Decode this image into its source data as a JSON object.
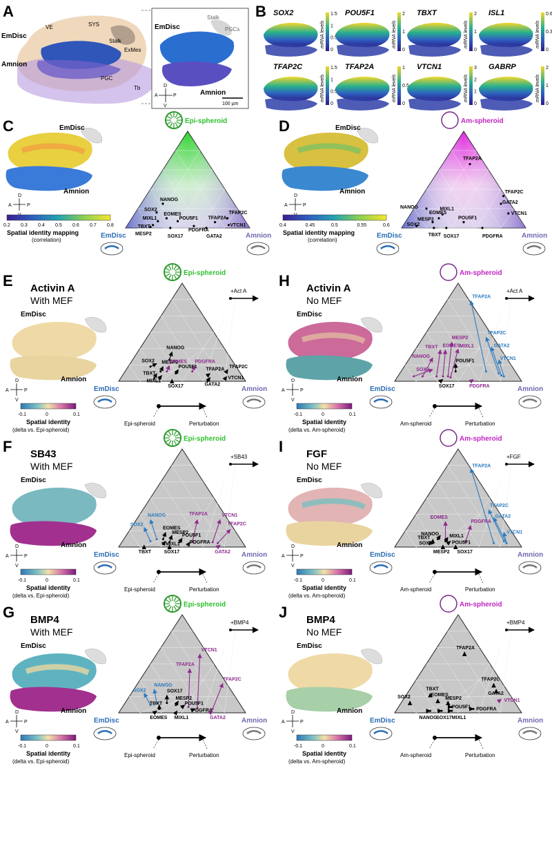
{
  "panelA": {
    "label": "A",
    "anno": [
      "EmDisc",
      "VE",
      "SYS",
      "Stalk",
      "ExMes",
      "Amnion",
      "PGC",
      "Tb"
    ],
    "inset": {
      "emdisc": "EmDisc",
      "stalk": "Stalk",
      "pgcs": "PGCs",
      "amnion": "Amnion",
      "scale": "100 µm"
    }
  },
  "axes_compass": {
    "d": "D",
    "v": "V",
    "a": "A",
    "p": "P"
  },
  "panelB": {
    "label": "B",
    "cbar_label": "mRNA levels",
    "genes": [
      {
        "name": "SOX2",
        "ticks": [
          "1.5",
          "1",
          "0.5",
          "0"
        ]
      },
      {
        "name": "POU5F1",
        "ticks": [
          "2",
          "1",
          "0"
        ]
      },
      {
        "name": "TBXT",
        "ticks": [
          "2",
          "1",
          "0"
        ]
      },
      {
        "name": "ISL1",
        "ticks": [
          "0.6",
          "0.3",
          "0"
        ]
      },
      {
        "name": "TFAP2C",
        "ticks": [
          "1.5",
          "1",
          "0.5",
          "0"
        ]
      },
      {
        "name": "TFAP2A",
        "ticks": [
          "1",
          "0.5",
          "0"
        ]
      },
      {
        "name": "VTCN1",
        "ticks": [
          "3",
          "2",
          "1",
          "0"
        ]
      },
      {
        "name": "GABRP",
        "ticks": [
          "2",
          "1",
          "0"
        ]
      }
    ]
  },
  "panelC": {
    "label": "C",
    "spheroid": "Epi-spheroid",
    "emdisc": "EmDisc",
    "amnion": "Amnion",
    "cbar_ticks": [
      "0.2",
      "0.3",
      "0.4",
      "0.5",
      "0.6",
      "0.7",
      "0.8"
    ],
    "cbar_title": "Spatial identity mapping",
    "cbar_sub": "(correlation)",
    "genes": [
      "NANOG",
      "SOX2",
      "EOMES",
      "POU5F1",
      "MIXL1",
      "TBXT",
      "TFAP2C",
      "TFAP2A",
      "VTCN1",
      "PDGFRA",
      "MESP2",
      "SOX17",
      "GATA2"
    ]
  },
  "panelD": {
    "label": "D",
    "spheroid": "Am-spheroid",
    "emdisc": "EmDisc",
    "amnion": "Amnion",
    "cbar_ticks": [
      "0.4",
      "0.45",
      "0.5",
      "0.55",
      "0.6"
    ],
    "cbar_title": "Spatial identity mapping",
    "cbar_sub": "(correlation)",
    "genes": [
      "TFAP2A",
      "TFAP2C",
      "GATA2",
      "VTCN1",
      "NANOG",
      "MIXL1",
      "EOMES",
      "MESP2",
      "POU5F1",
      "SOX2",
      "TBXT",
      "SOX17",
      "PDGFRA"
    ]
  },
  "delta": {
    "ticks": [
      "-0.1",
      "0",
      "0.1"
    ],
    "title": "Spatial identity"
  },
  "panelE": {
    "label": "E",
    "title": "Activin A",
    "subtitle": "With MEF",
    "treat": "+Act A",
    "spheroid": "Epi-spheroid",
    "delta_sub": "(delta vs. Epi-spheroid)",
    "from": "Epi-spheroid",
    "to": "Perturbation",
    "genes": [
      "NANOG",
      "SOX2",
      "MESP2",
      "EOMES",
      "PDGFRA",
      "POU5F1",
      "TFAP2C",
      "TFAP2A",
      "VTCN1",
      "TBXT",
      "MIXL1",
      "SOX17",
      "GATA2"
    ]
  },
  "panelF": {
    "label": "F",
    "title": "SB43",
    "subtitle": "With MEF",
    "treat": "+SB43",
    "spheroid": "Epi-spheroid",
    "delta_sub": "(delta vs. Epi-spheroid)",
    "from": "Epi-spheroid",
    "to": "Perturbation",
    "genes": [
      "TFAP2A",
      "VTCN1",
      "TFAP2C",
      "NANOG",
      "SOX2",
      "EOMES",
      "MESP2",
      "POU5F1",
      "PDGFRA",
      "MIXL1",
      "TBXT",
      "SOX17",
      "GATA2"
    ]
  },
  "panelG": {
    "label": "G",
    "title": "BMP4",
    "subtitle": "With MEF",
    "treat": "+BMP4",
    "spheroid": "Epi-spheroid",
    "delta_sub": "(delta vs. Epi-spheroid)",
    "from": "Epi-spheroid",
    "to": "Perturbation",
    "genes": [
      "VTCN1",
      "TFAP2A",
      "TFAP2C",
      "NANOG",
      "SOX2",
      "SOX17",
      "MESP2",
      "POU5F1",
      "TBXT",
      "PDGFRA",
      "EOMES",
      "MIXL1",
      "GATA2"
    ]
  },
  "panelH": {
    "label": "H",
    "title": "Activin A",
    "subtitle": "No MEF",
    "treat": "+Act A",
    "spheroid": "Am-spheroid",
    "delta_sub": "(delta vs. Am-spheroid)",
    "from": "Am-spheroid",
    "to": "Perturbation",
    "genes": [
      "TFAP2A",
      "MESP2",
      "TFAP2C",
      "MIXL1",
      "TBXT",
      "EOMES",
      "GATA2",
      "NANOG",
      "POU5F1",
      "VTCN1",
      "SOX2",
      "SOX17",
      "PDGFRA"
    ]
  },
  "panelI": {
    "label": "I",
    "title": "FGF",
    "subtitle": "No MEF",
    "treat": "+FGF",
    "spheroid": "Am-spheroid",
    "delta_sub": "(delta vs. Am-spheroid)",
    "from": "Am-spheroid",
    "to": "Perturbation",
    "genes": [
      "TFAP2A",
      "TFAP2C",
      "GATA2",
      "EOMES",
      "PDGFRA",
      "VTCN1",
      "NANOG",
      "TBXT",
      "SOX2",
      "MIXL1",
      "POU5F1",
      "MESP2",
      "SOX17"
    ]
  },
  "panelJ": {
    "label": "J",
    "title": "BMP4",
    "subtitle": "No MEF",
    "treat": "+BMP4",
    "spheroid": "Am-spheroid",
    "delta_sub": "(delta vs. Am-spheroid)",
    "from": "Am-spheroid",
    "to": "Perturbation",
    "genes": [
      "TFAP2A",
      "TFAP2C",
      "GATA2",
      "VTCN1",
      "SOX2",
      "TBXT",
      "EOMES",
      "MESP2",
      "POU5F1",
      "PDGFRA",
      "NANOG",
      "SOX17",
      "MIXL1"
    ]
  },
  "corner": {
    "emdisc": "EmDisc",
    "amnion": "Amnion"
  },
  "colors": {
    "epi": "#2fbf2f",
    "am": "#c026c0",
    "emdisc": "#2a6db5",
    "amnion": "#6e6ab0",
    "blue_arrow": "#2b7bbf",
    "purple_arrow": "#8e2a8e"
  }
}
